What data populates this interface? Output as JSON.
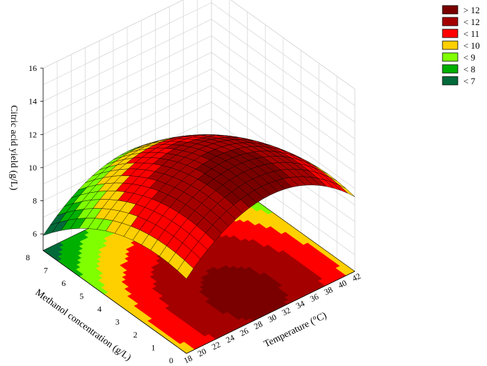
{
  "chart_data": {
    "type": "surface3d",
    "zlabel": "Citric acid yield (g/L)",
    "xlabel": "Temperature (°C)",
    "ylabel": "Methanol concentration (g/L)",
    "x_ticks": [
      "18",
      "20",
      "22",
      "24",
      "26",
      "28",
      "30",
      "32",
      "34",
      "36",
      "38",
      "40",
      "42"
    ],
    "y_ticks": [
      "0",
      "1",
      "2",
      "3",
      "4",
      "5",
      "6",
      "7",
      "8"
    ],
    "z_ticks": [
      "6",
      "8",
      "10",
      "12",
      "14",
      "16"
    ],
    "xlim": [
      18,
      42
    ],
    "ylim": [
      0,
      8
    ],
    "zlim": [
      5,
      16
    ],
    "legend": {
      "placement": "top-right",
      "entries": [
        {
          "label": "> 12",
          "color": "#7a0000"
        },
        {
          "label": "< 12",
          "color": "#a50000"
        },
        {
          "label": "< 11",
          "color": "#ff0000"
        },
        {
          "label": "< 10",
          "color": "#ffd000"
        },
        {
          "label": "< 9",
          "color": "#7fff00"
        },
        {
          "label": "< 8",
          "color": "#00b000"
        },
        {
          "label": "< 7",
          "color": "#006a3a"
        }
      ]
    },
    "surface_model": {
      "b0": 12.3,
      "x_opt": 30,
      "y_opt": 1.5,
      "bx": 0.018,
      "by": 0.09
    },
    "grid": true
  }
}
